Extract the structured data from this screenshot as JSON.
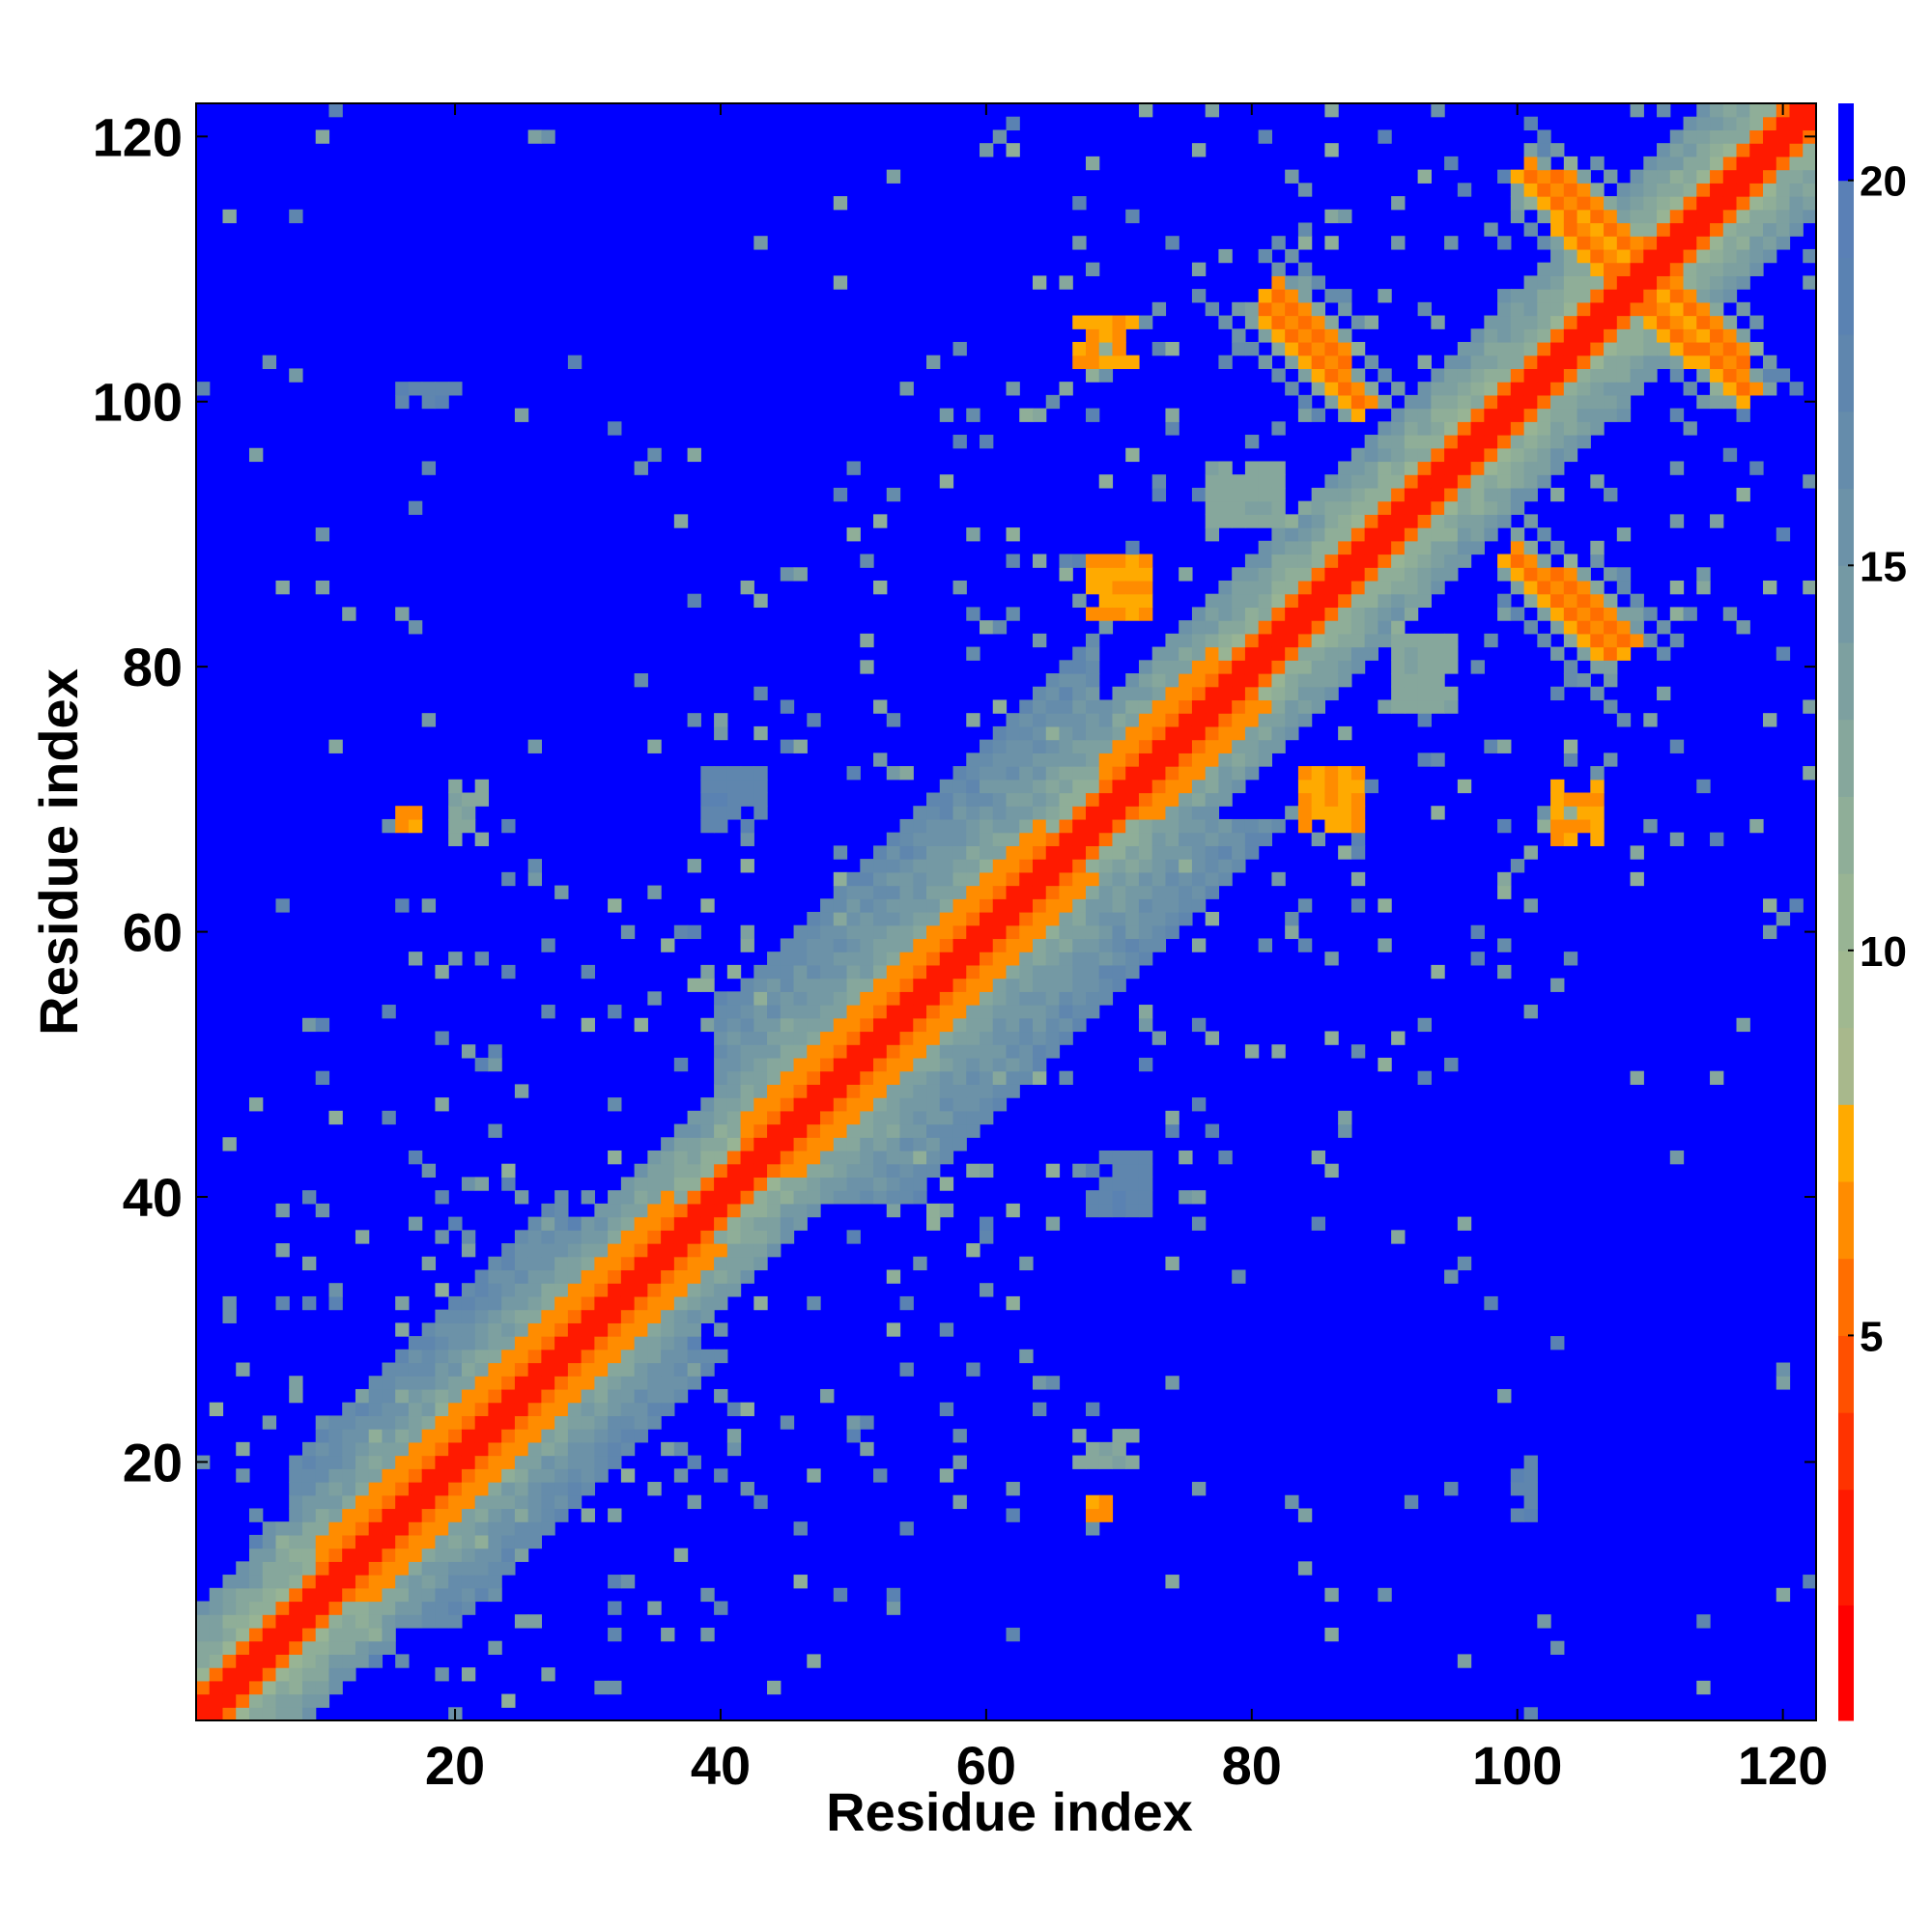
{
  "chart_data": {
    "type": "heatmap",
    "title": "",
    "xlabel": "Residue index",
    "ylabel": "Residue index",
    "xlim": [
      0.5,
      122.5
    ],
    "ylim": [
      0.5,
      122.5
    ],
    "n_residues": 122,
    "x_ticks": [
      20,
      40,
      60,
      80,
      100,
      120
    ],
    "y_ticks": [
      20,
      40,
      60,
      80,
      100,
      120
    ],
    "x_tick_labels": [
      "20",
      "40",
      "60",
      "80",
      "100",
      "120"
    ],
    "y_tick_labels": [
      "20",
      "40",
      "60",
      "80",
      "100",
      "120"
    ],
    "colorbar": {
      "range": [
        0,
        21
      ],
      "ticks": [
        5,
        10,
        15,
        20
      ],
      "tick_labels": [
        "5",
        "10",
        "15",
        "20"
      ],
      "levels": [
        {
          "max": 1.5,
          "color": "#ff0000"
        },
        {
          "max": 3.0,
          "color": "#ff1a00"
        },
        {
          "max": 4.0,
          "color": "#ff3300"
        },
        {
          "max": 5.0,
          "color": "#ff5000"
        },
        {
          "max": 6.0,
          "color": "#ff6e00"
        },
        {
          "max": 7.0,
          "color": "#ff8c00"
        },
        {
          "max": 8.0,
          "color": "#ffaa00"
        },
        {
          "max": 9.0,
          "color": "#a8b88c"
        },
        {
          "max": 10.0,
          "color": "#a0b890"
        },
        {
          "max": 11.0,
          "color": "#98b494"
        },
        {
          "max": 12.0,
          "color": "#8fae98"
        },
        {
          "max": 13.0,
          "color": "#86a79c"
        },
        {
          "max": 14.0,
          "color": "#7da0a0"
        },
        {
          "max": 15.0,
          "color": "#7499a4"
        },
        {
          "max": 16.0,
          "color": "#6c92a8"
        },
        {
          "max": 17.0,
          "color": "#658cab"
        },
        {
          "max": 18.0,
          "color": "#5f86ae"
        },
        {
          "max": 19.0,
          "color": "#5a82b2"
        },
        {
          "max": 20.0,
          "color": "#5a80b6"
        },
        {
          "max": 21.0,
          "color": "#0000ff"
        }
      ]
    },
    "background_value": 21,
    "features": [
      {
        "kind": "diagonal",
        "from": 1,
        "to": 122,
        "core": 2.0
      },
      {
        "kind": "helix_band",
        "from": 10,
        "to": 26,
        "offsets": [
          3,
          4
        ],
        "value": 6.5
      },
      {
        "kind": "helix_band",
        "from": 27,
        "to": 36,
        "offsets": [
          3,
          4
        ],
        "value": 6.5
      },
      {
        "kind": "helix_band",
        "from": 42,
        "to": 64,
        "offsets": [
          3,
          4
        ],
        "value": 6.5
      },
      {
        "kind": "helix_band",
        "from": 69,
        "to": 77,
        "offsets": [
          3,
          4
        ],
        "value": 6.5
      },
      {
        "kind": "halo",
        "from": 1,
        "to": 122,
        "width": 8,
        "value": 15
      },
      {
        "kind": "halo",
        "from": 8,
        "to": 28,
        "width": 12,
        "value": 17
      },
      {
        "kind": "halo",
        "from": 40,
        "to": 68,
        "width": 14,
        "value": 17
      },
      {
        "kind": "anti_diagonal",
        "i": [
          81,
          88
        ],
        "j": [
          107,
          100
        ],
        "value": 6.0
      },
      {
        "kind": "anti_diagonal",
        "i": [
          103,
          108
        ],
        "j": [
          87,
          82
        ],
        "value": 6.0
      },
      {
        "kind": "anti_diagonal",
        "i": [
          103,
          108
        ],
        "j": [
          117,
          112
        ],
        "value": 6.0
      },
      {
        "kind": "anti_diagonal",
        "i": [
          110,
          117
        ],
        "j": [
          107,
          101
        ],
        "value": 6.0
      },
      {
        "kind": "patch",
        "i": [
          69,
          72
        ],
        "j": [
          84,
          88
        ],
        "value": 6.5
      },
      {
        "kind": "patch",
        "i": [
          67,
          71
        ],
        "j": [
          103,
          106
        ],
        "value": 6.5
      },
      {
        "kind": "patch",
        "i": [
          84,
          88
        ],
        "j": [
          68,
          72
        ],
        "value": 6.5
      },
      {
        "kind": "patch",
        "i": [
          103,
          106
        ],
        "j": [
          67,
          70
        ],
        "value": 6.5
      },
      {
        "kind": "patch",
        "i": [
          16,
          17
        ],
        "j": [
          68,
          69
        ],
        "value": 6.5
      },
      {
        "kind": "patch",
        "i": [
          68,
          69
        ],
        "j": [
          16,
          17
        ],
        "value": 6.5
      },
      {
        "kind": "patch",
        "i": [
          39,
          43
        ],
        "j": [
          68,
          72
        ],
        "value": 17
      },
      {
        "kind": "patch",
        "i": [
          68,
          72
        ],
        "j": [
          39,
          43
        ],
        "value": 17
      },
      {
        "kind": "patch",
        "i": [
          67,
          71
        ],
        "j": [
          22,
          20
        ],
        "value": 12
      },
      {
        "kind": "patch",
        "i": [
          16,
          20
        ],
        "j": [
          100,
          101
        ],
        "value": 17
      },
      {
        "kind": "patch",
        "i": [
          77,
          82
        ],
        "j": [
          91,
          95
        ],
        "value": 12
      },
      {
        "kind": "patch",
        "i": [
          91,
          95
        ],
        "j": [
          77,
          82
        ],
        "value": 12
      }
    ]
  }
}
